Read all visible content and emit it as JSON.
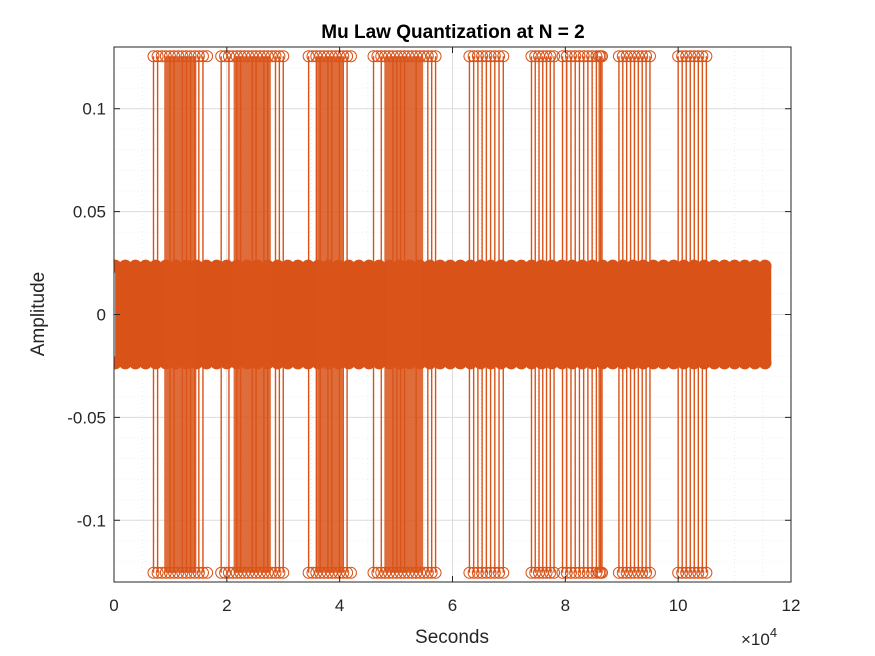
{
  "chart_data": {
    "type": "scatter",
    "title": "Mu Law Quantization at N = 2",
    "xlabel": "Seconds",
    "ylabel": "Amplitude",
    "x_exponent_label": "×10",
    "x_exponent_power": "4",
    "xlim": [
      0,
      12
    ],
    "ylim": [
      -0.13,
      0.13
    ],
    "xticks": [
      0,
      2,
      4,
      6,
      8,
      10,
      12
    ],
    "xtick_labels": [
      "0",
      "2",
      "4",
      "6",
      "8",
      "10",
      "12"
    ],
    "yticks": [
      -0.1,
      -0.05,
      0,
      0.05,
      0.1
    ],
    "ytick_labels": [
      "-0.1",
      "-0.05",
      "0",
      "0.05",
      "0.1"
    ],
    "grid": "on",
    "minor_grid": "on",
    "marker": "circle",
    "color": "#D95319",
    "series": [
      {
        "levels": [
          -0.1255,
          -0.0235,
          0.0235,
          0.1255
        ],
        "dense_low_level_span_x": [
          0.02,
          11.65
        ],
        "high_amplitude_bursts_x": [
          [
            0.7,
            1.65
          ],
          [
            1.9,
            3.0
          ],
          [
            3.45,
            4.2
          ],
          [
            4.6,
            5.7
          ],
          [
            6.3,
            6.9
          ],
          [
            7.4,
            7.8
          ],
          [
            7.95,
            8.55
          ],
          [
            8.6,
            8.65
          ],
          [
            8.95,
            9.5
          ],
          [
            10.0,
            10.5
          ]
        ]
      }
    ]
  }
}
